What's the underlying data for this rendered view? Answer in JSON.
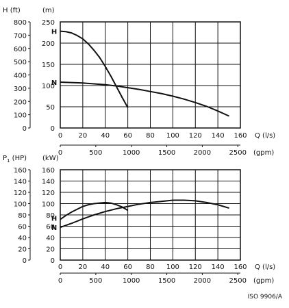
{
  "footnote": "ISO 9906/A",
  "chart_data": [
    {
      "type": "line",
      "y_primary_label": "(m)",
      "y_secondary_label": "H (ft)",
      "x_primary_label": "Q (l/s)",
      "x_secondary_label": "(gpm)",
      "xlim": [
        0,
        160
      ],
      "ylim": [
        0,
        250
      ],
      "x_ticks": [
        0,
        20,
        40,
        60,
        80,
        100,
        120,
        140,
        160
      ],
      "y_ticks": [
        0,
        50,
        100,
        150,
        200,
        250
      ],
      "y2_ticks": [
        0,
        100,
        200,
        300,
        400,
        500,
        600,
        700,
        800
      ],
      "gpm_ticks": [
        0,
        500,
        1000,
        1500,
        2000,
        2500
      ],
      "grid": true,
      "series": [
        {
          "name": "H",
          "x": [
            0,
            5,
            10,
            15,
            20,
            25,
            30,
            35,
            40,
            45,
            50,
            55,
            60
          ],
          "y": [
            228,
            227,
            224,
            218,
            210,
            198,
            183,
            166,
            145,
            122,
            97,
            72,
            48
          ]
        },
        {
          "name": "N",
          "x": [
            0,
            10,
            20,
            30,
            40,
            50,
            60,
            70,
            80,
            90,
            100,
            110,
            120,
            130,
            140,
            150
          ],
          "y": [
            108,
            107,
            106,
            104,
            102,
            99,
            95,
            91,
            86,
            81,
            75,
            68,
            60,
            51,
            40,
            28
          ]
        }
      ]
    },
    {
      "type": "line",
      "y_primary_label": "(kW)",
      "y_secondary_label": "P",
      "y_secondary_subscript": "1",
      "y_secondary_unit": "(HP)",
      "x_primary_label": "Q (l/s)",
      "x_secondary_label": "(gpm)",
      "xlim": [
        0,
        160
      ],
      "ylim": [
        0,
        160
      ],
      "x_ticks": [
        0,
        20,
        40,
        60,
        80,
        100,
        120,
        140,
        160
      ],
      "y_ticks": [
        0,
        20,
        40,
        60,
        80,
        100,
        120,
        140,
        160
      ],
      "y2_ticks": [
        0,
        20,
        40,
        60,
        80,
        100,
        120,
        140,
        160
      ],
      "gpm_ticks": [
        0,
        500,
        1000,
        1500,
        2000,
        2500
      ],
      "grid": true,
      "series": [
        {
          "name": "H",
          "x": [
            0,
            5,
            10,
            15,
            20,
            25,
            30,
            35,
            40,
            45,
            50,
            55,
            60
          ],
          "y": [
            72,
            79,
            85,
            90,
            95,
            98,
            100,
            101,
            102,
            101,
            98,
            94,
            88
          ]
        },
        {
          "name": "N",
          "x": [
            0,
            10,
            20,
            30,
            40,
            50,
            60,
            70,
            80,
            90,
            100,
            110,
            120,
            130,
            140,
            150
          ],
          "y": [
            58,
            65,
            73,
            80,
            86,
            91,
            95,
            99,
            102,
            104,
            106,
            106,
            105,
            102,
            98,
            92
          ]
        }
      ]
    }
  ]
}
